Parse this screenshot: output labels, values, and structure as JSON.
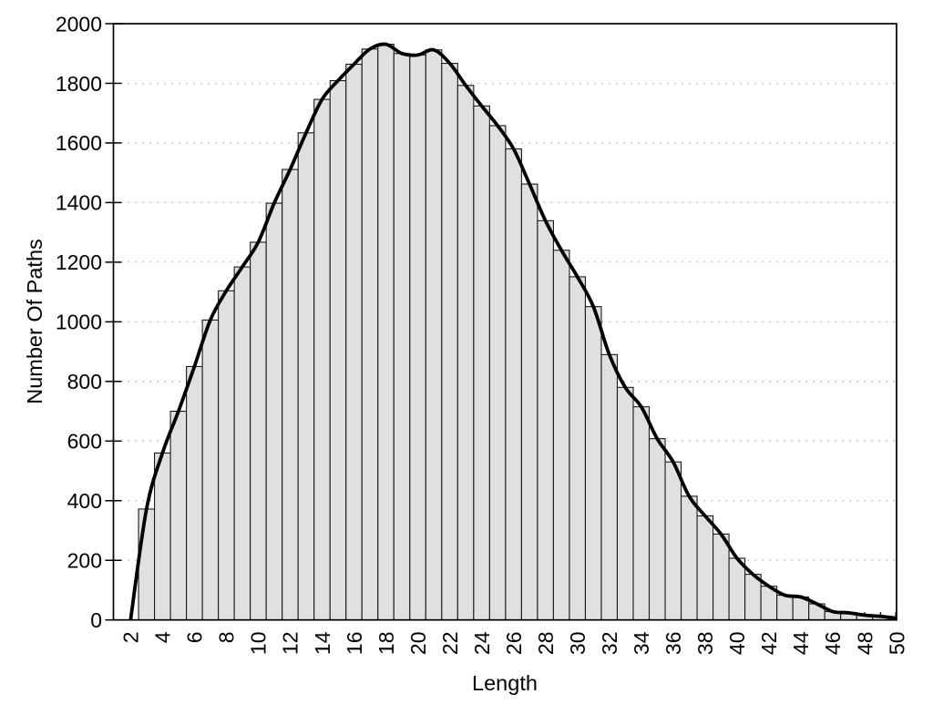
{
  "chart_data": {
    "type": "bar",
    "subtype": "histogram_with_smooth_curve_overlay",
    "title": "",
    "xlabel": "Length",
    "ylabel": "Number Of Paths",
    "x": [
      3,
      4,
      5,
      6,
      7,
      8,
      9,
      10,
      11,
      12,
      13,
      14,
      15,
      16,
      17,
      18,
      19,
      20,
      21,
      22,
      23,
      24,
      25,
      26,
      27,
      28,
      29,
      30,
      31,
      32,
      33,
      34,
      35,
      36,
      37,
      38,
      39,
      40,
      41,
      42,
      43,
      44,
      45,
      46,
      47,
      48,
      49,
      50
    ],
    "values": [
      372,
      560,
      700,
      850,
      1006,
      1104,
      1184,
      1267,
      1398,
      1511,
      1634,
      1746,
      1809,
      1864,
      1915,
      1931,
      1900,
      1895,
      1912,
      1867,
      1793,
      1724,
      1658,
      1580,
      1462,
      1339,
      1240,
      1151,
      1051,
      890,
      780,
      715,
      608,
      530,
      415,
      349,
      288,
      207,
      153,
      113,
      83,
      77,
      54,
      28,
      24,
      16,
      12,
      6
    ],
    "smooth_curve": {
      "description": "black smooth spline through (curve_start) then every (x, value) bar point",
      "curve_start_x": 2,
      "curve_start_value": 0
    },
    "bar_width_units": 1,
    "xlim": [
      2,
      50
    ],
    "ylim": [
      0,
      2000
    ],
    "xtick_labels": [
      2,
      4,
      6,
      8,
      10,
      12,
      14,
      16,
      18,
      20,
      22,
      24,
      26,
      28,
      30,
      32,
      34,
      36,
      38,
      40,
      42,
      44,
      46,
      48,
      50
    ],
    "xtick_minor_every": 1,
    "ytick_labels": [
      0,
      200,
      400,
      600,
      800,
      1000,
      1200,
      1400,
      1600,
      1800,
      2000
    ],
    "grid": {
      "horizontal_dotted_at": [
        200,
        400,
        600,
        800,
        1000,
        1200,
        1400,
        1600,
        1800
      ],
      "vertical": false
    },
    "legend": "none",
    "colors": {
      "background": "#ffffff",
      "bar_fill": "#e0e0e0",
      "bar_stroke": "#1a1a1a",
      "curve": "#000000",
      "grid": "#adadad",
      "axis": "#000000",
      "text": "#000000"
    },
    "style_notes": "x tick labels rotated 90deg reading bottom-to-top; inward axis ticks"
  }
}
